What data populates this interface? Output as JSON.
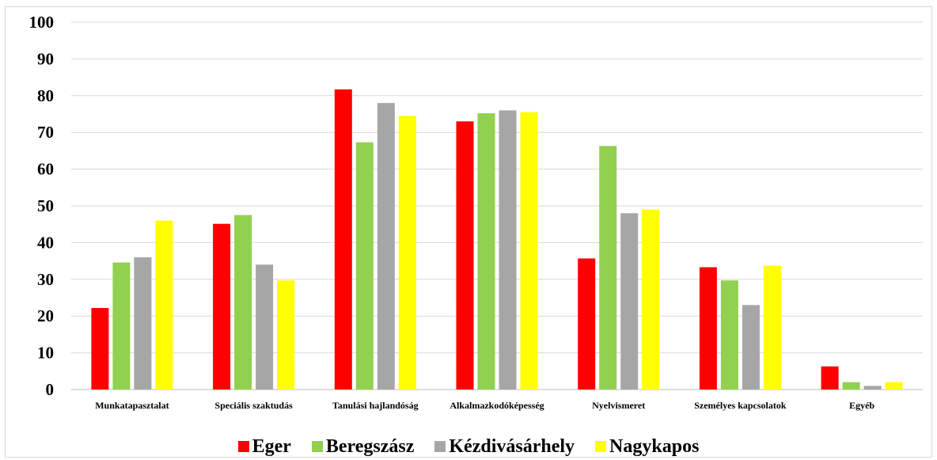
{
  "chart_data": {
    "type": "bar",
    "categories": [
      "Munkatapasztalat",
      "Speciális szaktudás",
      "Tanulási hajlandóság",
      "Alkalmazkodóképesség",
      "Nyelvismeret",
      "Személyes kapcsolatok",
      "Egyéb"
    ],
    "series": [
      {
        "name": "Eger",
        "color": "#ff0000",
        "values": [
          22.2,
          45.1,
          81.7,
          73.0,
          35.7,
          33.3,
          6.3
        ]
      },
      {
        "name": "Beregszász",
        "color": "#92d050",
        "values": [
          34.6,
          47.5,
          67.3,
          75.2,
          66.3,
          29.7,
          2.0
        ]
      },
      {
        "name": "Kézdivásárhely",
        "color": "#a6a6a6",
        "values": [
          36.0,
          34.0,
          78.0,
          76.0,
          48.0,
          23.0,
          1.0
        ]
      },
      {
        "name": "Nagykapos",
        "color": "#ffff00",
        "values": [
          46.0,
          29.7,
          74.5,
          75.5,
          49.0,
          33.7,
          2.0
        ]
      }
    ],
    "yticks": [
      "0",
      "10",
      "20",
      "30",
      "40",
      "50",
      "60",
      "70",
      "80",
      "90",
      "100"
    ],
    "ylim": [
      0,
      100
    ],
    "grid": true,
    "legend": "bottom",
    "title": "",
    "xlabel": "",
    "ylabel": ""
  }
}
